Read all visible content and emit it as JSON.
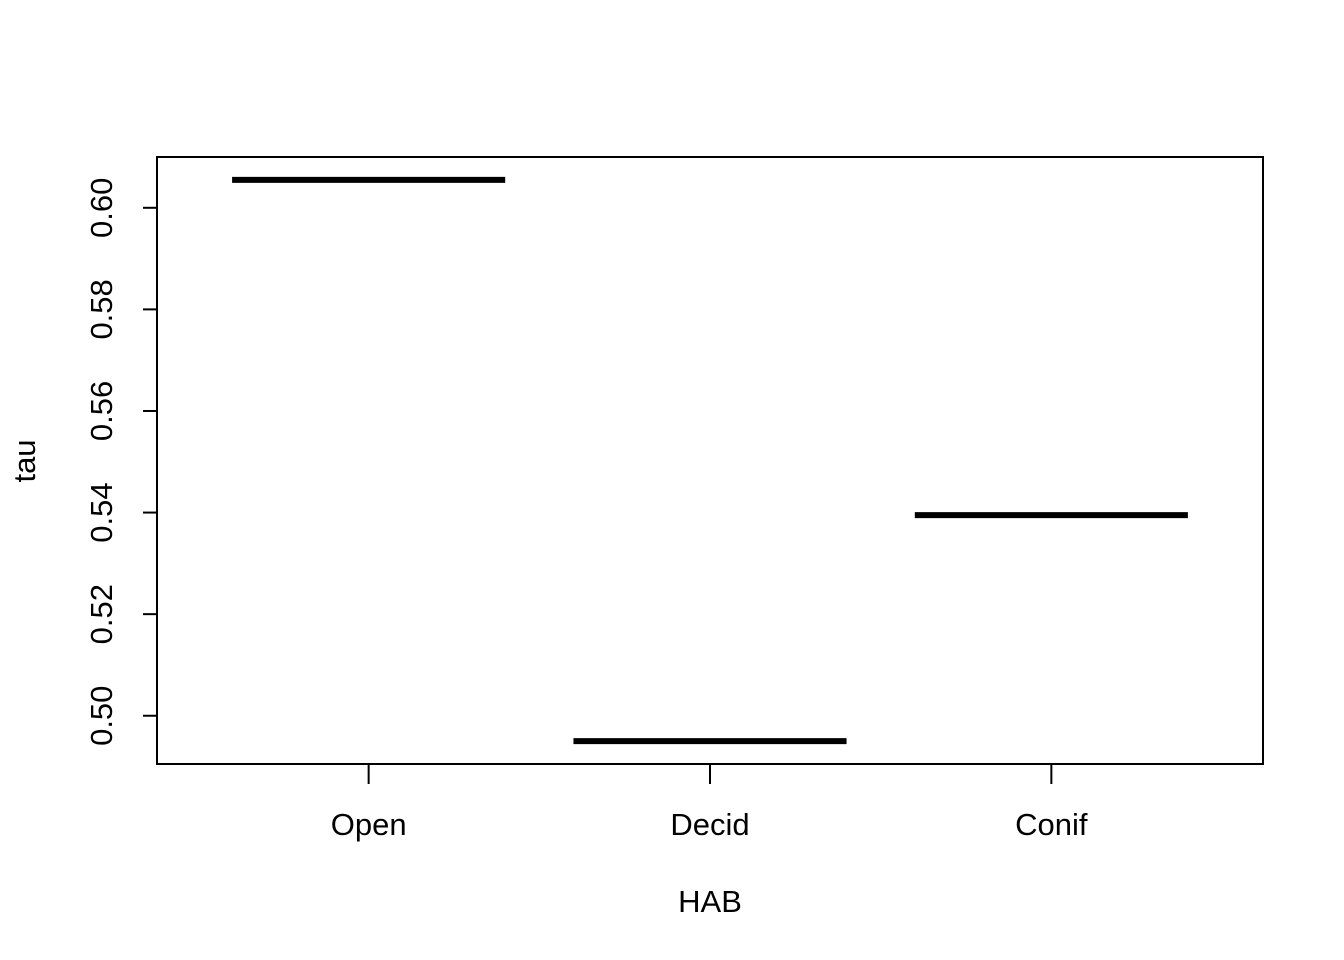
{
  "chart_data": {
    "type": "line",
    "categories": [
      "Open",
      "Decid",
      "Conif"
    ],
    "values": [
      0.6055,
      0.495,
      0.5395
    ],
    "xlabel": "HAB",
    "ylabel": "tau",
    "ylim": [
      0.4905,
      0.61
    ],
    "yticks": [
      0.5,
      0.52,
      0.54,
      0.56,
      0.58,
      0.6
    ],
    "ytick_labels": [
      "0.50",
      "0.52",
      "0.54",
      "0.56",
      "0.58",
      "0.60"
    ],
    "grid": false,
    "legend": "none",
    "colors": {
      "line": "#000000",
      "axis": "#000000",
      "background": "#ffffff"
    }
  }
}
